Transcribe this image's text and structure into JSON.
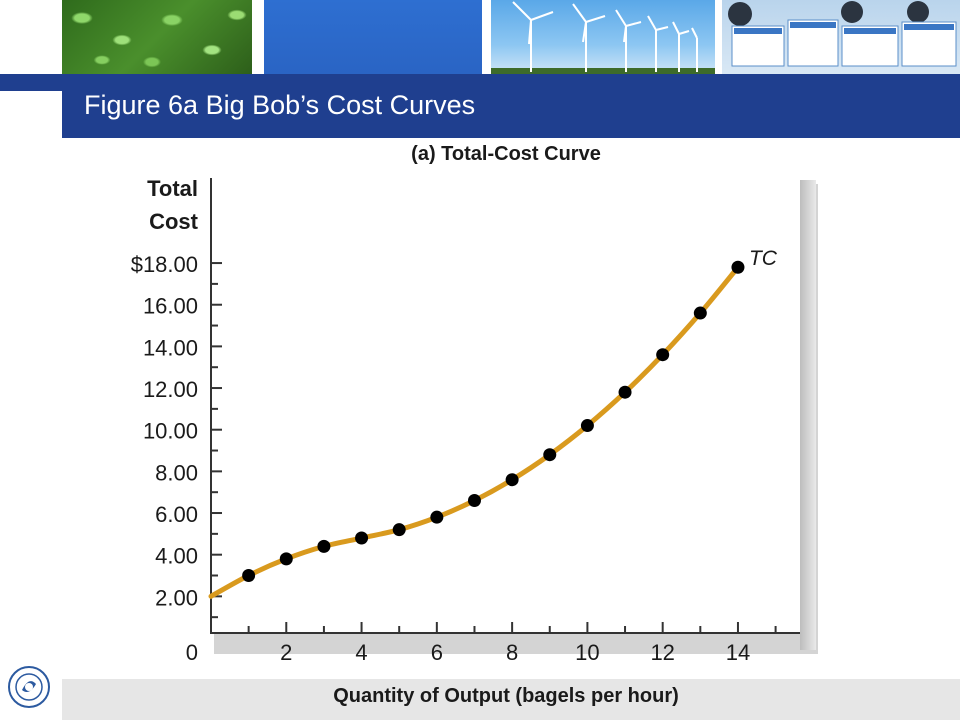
{
  "slide": {
    "title": "Figure 6a Big Bob’s Cost Curves"
  },
  "chart_data": {
    "type": "line",
    "title": "(a) Total-Cost Curve",
    "ylabel_line1": "Total",
    "ylabel_line2": "Cost",
    "xlabel": "Quantity of Output (bagels per hour)",
    "series_label": "TC",
    "xlim": [
      0,
      15
    ],
    "ylim": [
      0,
      18
    ],
    "y_ticks": [
      {
        "v": 0,
        "label": "0"
      },
      {
        "v": 2,
        "label": "2.00"
      },
      {
        "v": 4,
        "label": "4.00"
      },
      {
        "v": 6,
        "label": "6.00"
      },
      {
        "v": 8,
        "label": "8.00"
      },
      {
        "v": 10,
        "label": "10.00"
      },
      {
        "v": 12,
        "label": "12.00"
      },
      {
        "v": 14,
        "label": "14.00"
      },
      {
        "v": 16,
        "label": "16.00"
      },
      {
        "v": 18,
        "label": "$18.00"
      }
    ],
    "x_ticks": [
      {
        "v": 2,
        "label": "2"
      },
      {
        "v": 4,
        "label": "4"
      },
      {
        "v": 6,
        "label": "6"
      },
      {
        "v": 8,
        "label": "8"
      },
      {
        "v": 10,
        "label": "10"
      },
      {
        "v": 12,
        "label": "12"
      },
      {
        "v": 14,
        "label": "14"
      }
    ],
    "curve_start": {
      "x": 0,
      "y": 2.0
    },
    "x": [
      1,
      2,
      3,
      4,
      5,
      6,
      7,
      8,
      9,
      10,
      11,
      12,
      13,
      14
    ],
    "y": [
      3.0,
      3.8,
      4.4,
      4.8,
      5.2,
      5.8,
      6.6,
      7.6,
      8.8,
      10.2,
      11.8,
      13.6,
      15.6,
      17.8
    ],
    "line_color": "#d99a1e",
    "marker_color": "#000000"
  }
}
